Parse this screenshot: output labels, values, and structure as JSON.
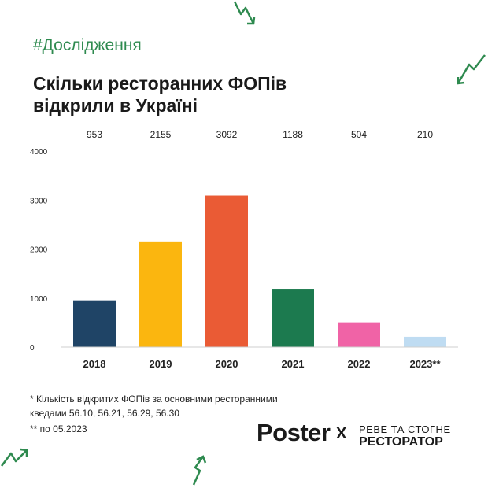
{
  "header": {
    "hashtag": "#Дослідження",
    "title": "Скільки ресторанних ФОПів відкрили в Україні"
  },
  "chart_data": {
    "type": "bar",
    "categories": [
      "2018",
      "2019",
      "2020",
      "2021",
      "2022",
      "2023**"
    ],
    "values": [
      953,
      2155,
      3092,
      1188,
      504,
      210
    ],
    "value_labels": [
      "953",
      "2155",
      "3092",
      "1188",
      "504",
      "210"
    ],
    "colors": [
      "#1f4466",
      "#fbb60f",
      "#ea5b35",
      "#1c7a4f",
      "#f063a6",
      "#bfdcf2"
    ],
    "ylim": [
      0,
      4000
    ],
    "yticks": [
      0,
      1000,
      2000,
      3000,
      4000
    ],
    "grid": false,
    "legend": "none"
  },
  "footnotes": {
    "note1": "* Кількість відкритих ФОПів за основними ресторанними кведами 56.10, 56.21, 56.29, 56.30",
    "note2": "** по 05.2023"
  },
  "brand": {
    "poster": "Poster",
    "x": "X",
    "partner_line1": "РЕВЕ ТА СТОГНЕ",
    "partner_line2": "РЕСТОРАТОР"
  },
  "accent_color": "#2e8a4f"
}
